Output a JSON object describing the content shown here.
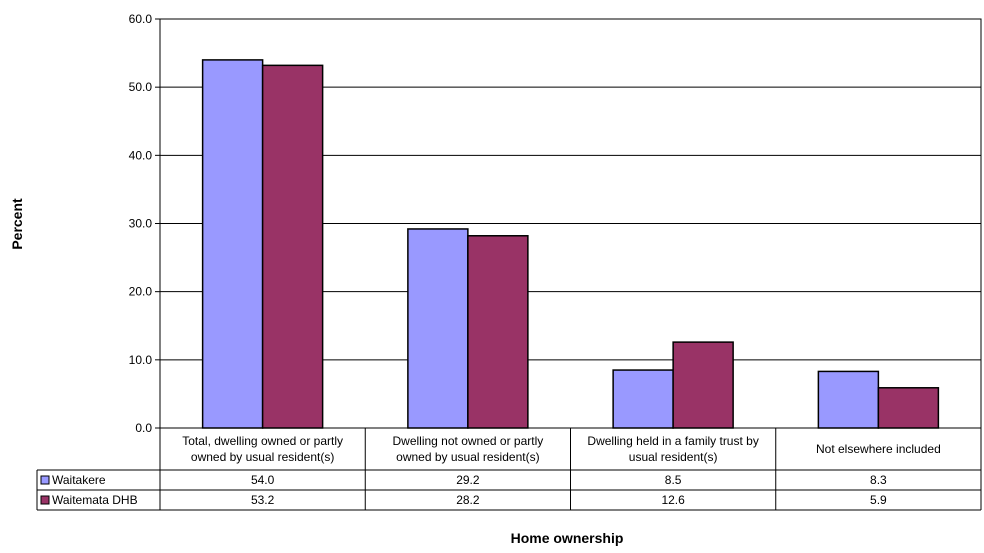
{
  "chart_data": {
    "type": "bar",
    "title": "",
    "xlabel": "Home ownership",
    "ylabel": "Percent",
    "ylim": [
      0,
      60
    ],
    "yticks": [
      "0.0",
      "10.0",
      "20.0",
      "30.0",
      "40.0",
      "50.0",
      "60.0"
    ],
    "grid": true,
    "legend": "data-table",
    "categories": [
      [
        "Total, dwelling owned or partly",
        "owned by usual resident(s)"
      ],
      [
        "Dwelling not owned or partly",
        "owned by usual resident(s)"
      ],
      [
        "Dwelling held in a family trust by",
        "usual resident(s)"
      ],
      [
        "Not elsewhere included"
      ]
    ],
    "series": [
      {
        "name": "Waitakere",
        "color": "#9999ff",
        "values": [
          54.0,
          29.2,
          8.5,
          8.3
        ],
        "labels": [
          "54.0",
          "29.2",
          "8.5",
          "8.3"
        ]
      },
      {
        "name": "Waitemata DHB",
        "color": "#993366",
        "values": [
          53.2,
          28.2,
          12.6,
          5.9
        ],
        "labels": [
          "53.2",
          "28.2",
          "12.6",
          "5.9"
        ]
      }
    ]
  }
}
